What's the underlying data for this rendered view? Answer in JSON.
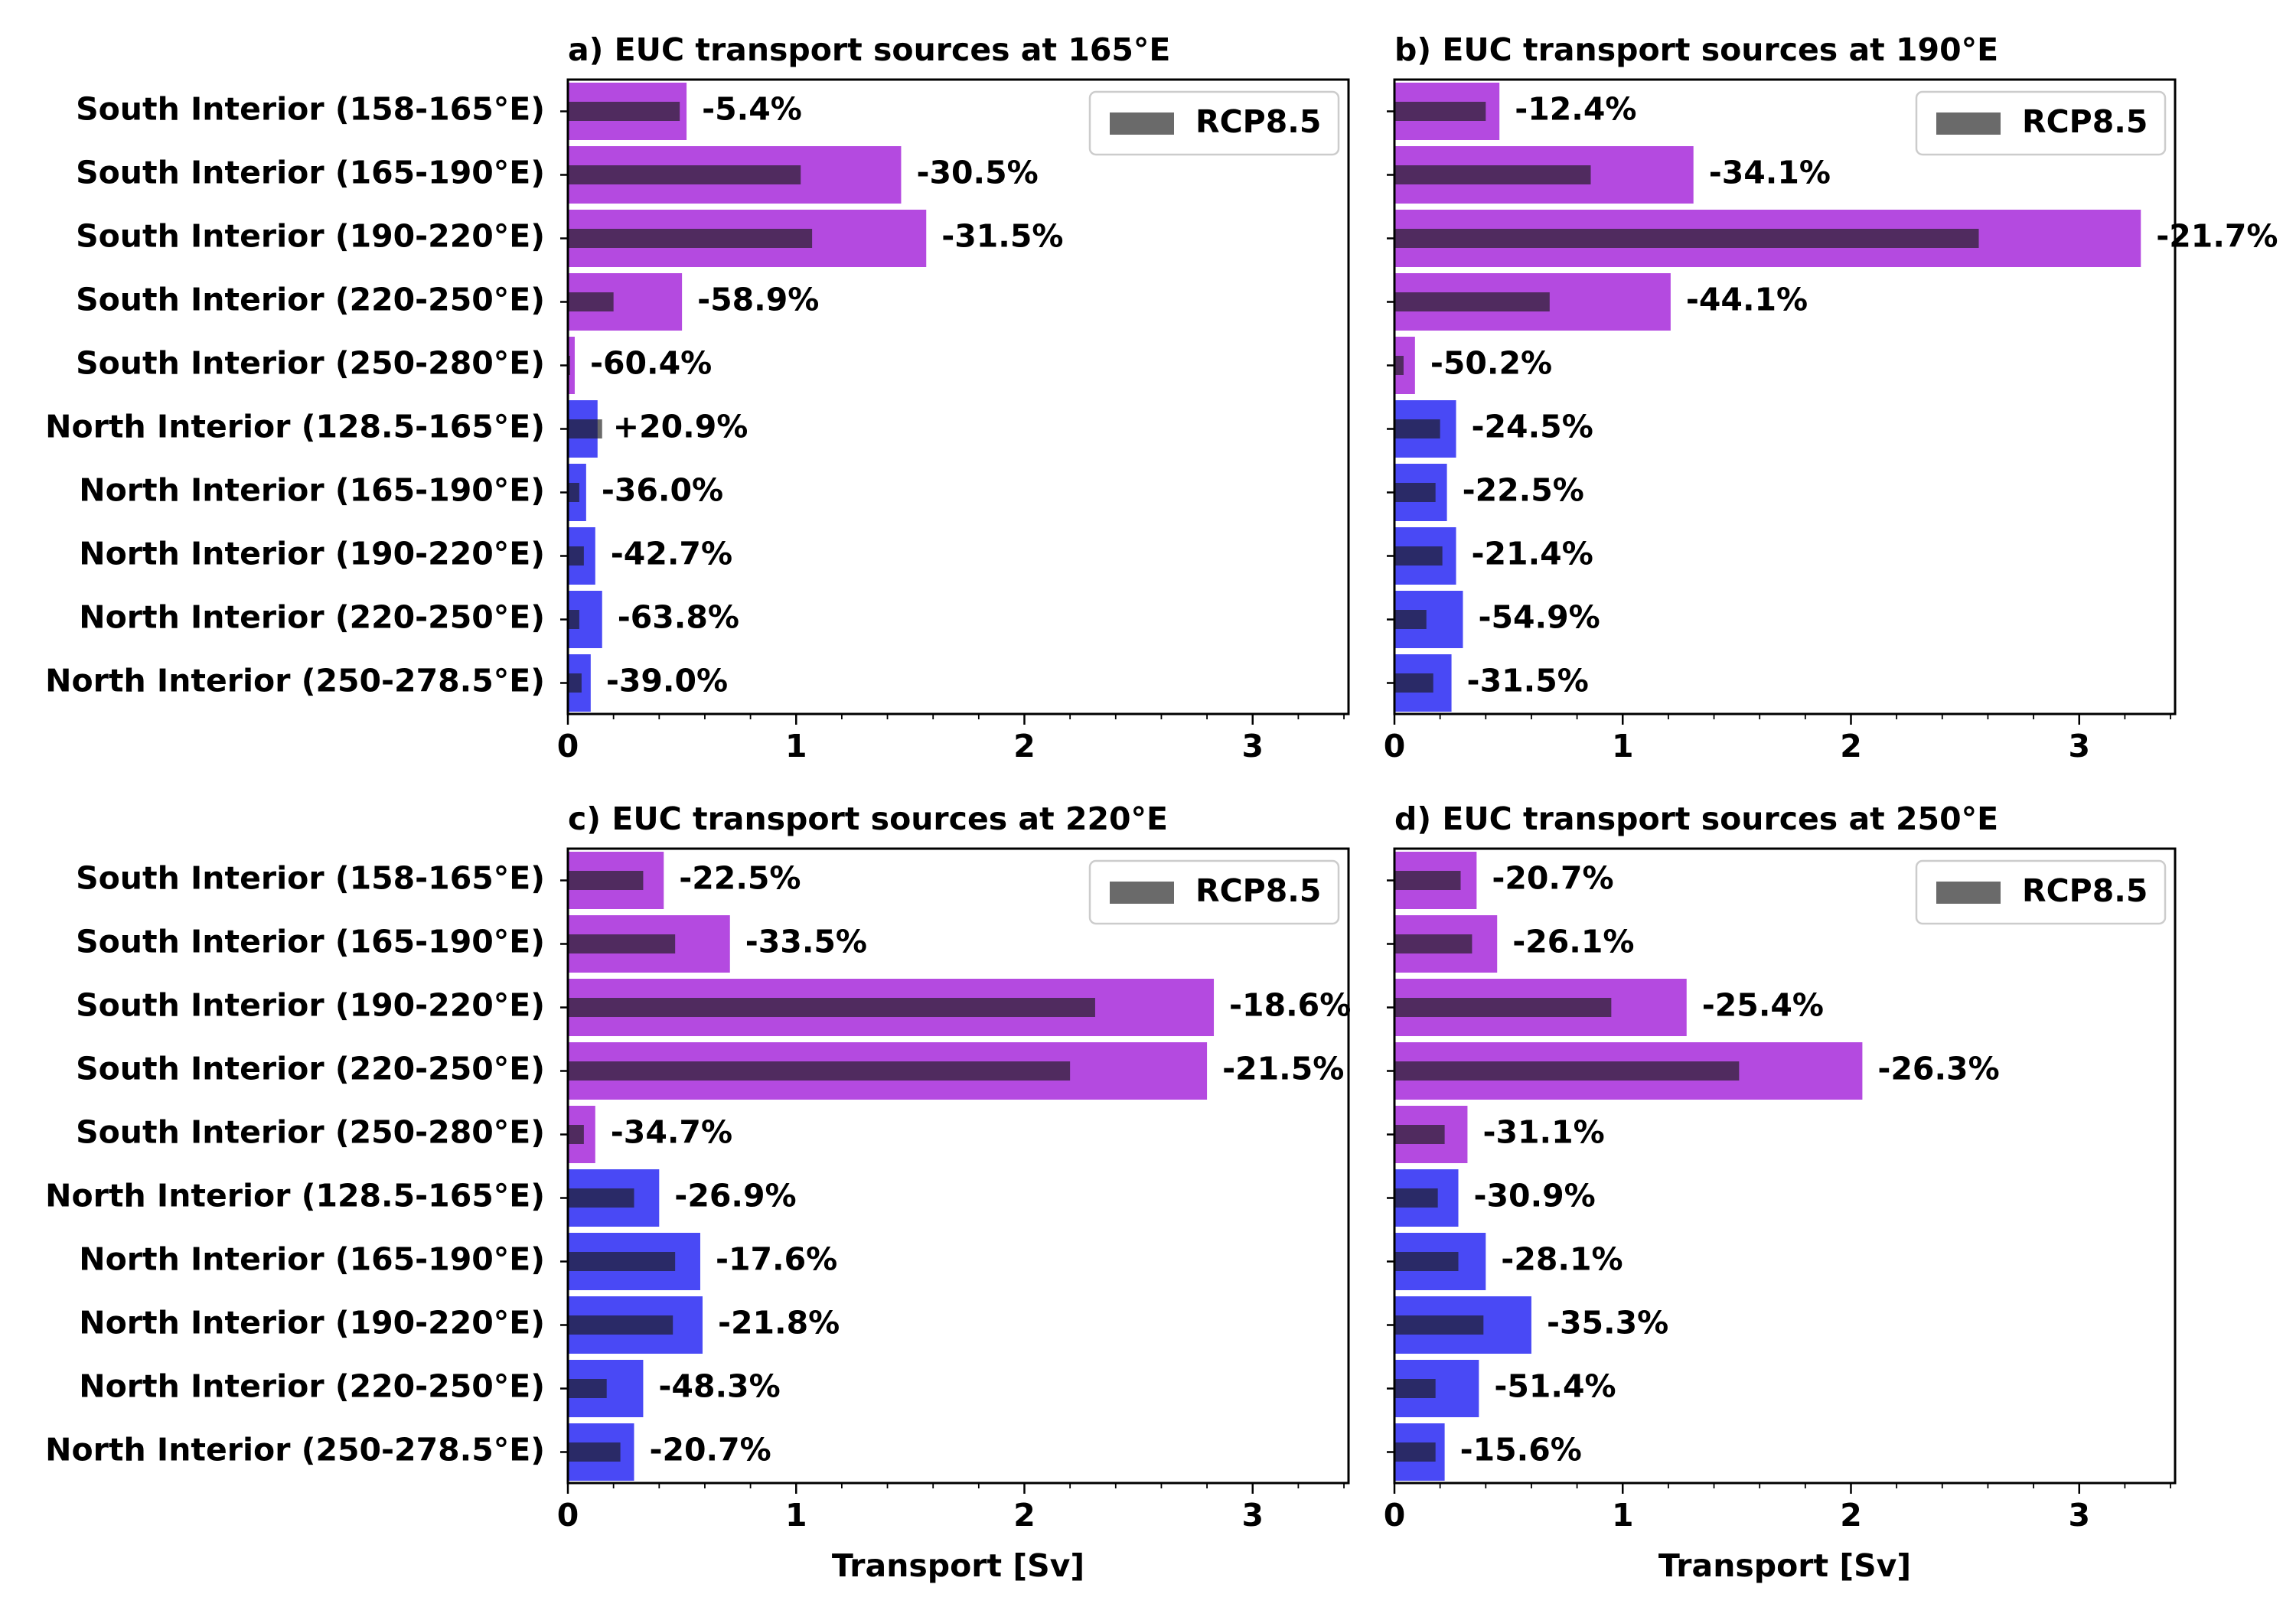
{
  "figure": {
    "xlabel": "Transport [Sv]"
  },
  "colors": {
    "south": "#b44ae0",
    "north": "#4949f5",
    "rcp": "#1a1a1a"
  },
  "categories": [
    "South Interior (158-165°E)",
    "South Interior (165-190°E)",
    "South Interior (190-220°E)",
    "South Interior (220-250°E)",
    "South Interior (250-280°E)",
    "North Interior (128.5-165°E)",
    "North Interior (165-190°E)",
    "North Interior (190-220°E)",
    "North Interior (220-250°E)",
    "North Interior (250-278.5°E)"
  ],
  "chart_data": [
    {
      "type": "bar",
      "title": "a) EUC transport sources at 165°E",
      "xlabel": "",
      "xlim": [
        0,
        3.42
      ],
      "xticks": [
        "0",
        "1",
        "2",
        "3"
      ],
      "legend": {
        "label": "RCP8.5",
        "placement": "top-right"
      },
      "series": [
        {
          "values": [
            0.52,
            1.46,
            1.57,
            0.5,
            0.03,
            0.13,
            0.08,
            0.12,
            0.15,
            0.1
          ]
        },
        {
          "name": "RCP8.5",
          "values": [
            0.49,
            1.02,
            1.07,
            0.2,
            0.01,
            0.15,
            0.05,
            0.07,
            0.05,
            0.06
          ]
        }
      ],
      "annotations": [
        "-5.4%",
        "-30.5%",
        "-31.5%",
        "-58.9%",
        "-60.4%",
        "+20.9%",
        "-36.0%",
        "-42.7%",
        "-63.8%",
        "-39.0%"
      ]
    },
    {
      "type": "bar",
      "title": "b) EUC transport sources at 190°E",
      "xlabel": "",
      "xlim": [
        0,
        3.42
      ],
      "xticks": [
        "0",
        "1",
        "2",
        "3"
      ],
      "legend": {
        "label": "RCP8.5",
        "placement": "top-right"
      },
      "series": [
        {
          "values": [
            0.46,
            1.31,
            3.27,
            1.21,
            0.09,
            0.27,
            0.23,
            0.27,
            0.3,
            0.25
          ]
        },
        {
          "name": "RCP8.5",
          "values": [
            0.4,
            0.86,
            2.56,
            0.68,
            0.04,
            0.2,
            0.18,
            0.21,
            0.14,
            0.17
          ]
        }
      ],
      "annotations": [
        "-12.4%",
        "-34.1%",
        "-21.7%",
        "-44.1%",
        "-50.2%",
        "-24.5%",
        "-22.5%",
        "-21.4%",
        "-54.9%",
        "-31.5%"
      ]
    },
    {
      "type": "bar",
      "title": "c) EUC transport sources at 220°E",
      "xlabel": "Transport [Sv]",
      "xlim": [
        0,
        3.42
      ],
      "xticks": [
        "0",
        "1",
        "2",
        "3"
      ],
      "legend": {
        "label": "RCP8.5",
        "placement": "top-right"
      },
      "series": [
        {
          "values": [
            0.42,
            0.71,
            2.83,
            2.8,
            0.12,
            0.4,
            0.58,
            0.59,
            0.33,
            0.29
          ]
        },
        {
          "name": "RCP8.5",
          "values": [
            0.33,
            0.47,
            2.31,
            2.2,
            0.07,
            0.29,
            0.47,
            0.46,
            0.17,
            0.23
          ]
        }
      ],
      "annotations": [
        "-22.5%",
        "-33.5%",
        "-18.6%",
        "-21.5%",
        "-34.7%",
        "-26.9%",
        "-17.6%",
        "-21.8%",
        "-48.3%",
        "-20.7%"
      ]
    },
    {
      "type": "bar",
      "title": "d) EUC transport sources at 250°E",
      "xlabel": "Transport [Sv]",
      "xlim": [
        0,
        3.42
      ],
      "xticks": [
        "0",
        "1",
        "2",
        "3"
      ],
      "legend": {
        "label": "RCP8.5",
        "placement": "top-right"
      },
      "series": [
        {
          "values": [
            0.36,
            0.45,
            1.28,
            2.05,
            0.32,
            0.28,
            0.4,
            0.6,
            0.37,
            0.22
          ]
        },
        {
          "name": "RCP8.5",
          "values": [
            0.29,
            0.34,
            0.95,
            1.51,
            0.22,
            0.19,
            0.28,
            0.39,
            0.18,
            0.18
          ]
        }
      ],
      "annotations": [
        "-20.7%",
        "-26.1%",
        "-25.4%",
        "-26.3%",
        "-31.1%",
        "-30.9%",
        "-28.1%",
        "-35.3%",
        "-51.4%",
        "-15.6%"
      ]
    }
  ]
}
